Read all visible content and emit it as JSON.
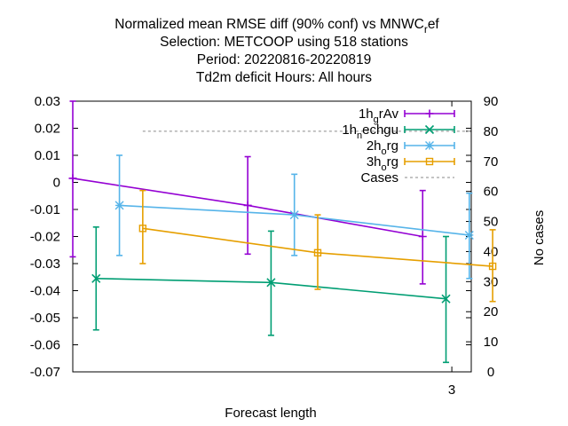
{
  "chart_data": {
    "type": "line",
    "title_lines": [
      "Normalized mean RMSE diff (90% conf) vs MNWC",
      "Selection: METCOOP using   518 stations",
      "Period: 20220816-20220819",
      "Td2m deficit   Hours:  All hours"
    ],
    "title_sub": "r",
    "title_tail": "ef",
    "xlabel": "Forecast length",
    "ylabel_right": "No cases",
    "x_ticks": [
      "3"
    ],
    "xlim": [
      1.05,
      3.1
    ],
    "ylim": [
      -0.07,
      0.03
    ],
    "y_ticks": [
      "0.03",
      "0.02",
      "0.01",
      "0",
      "-0.01",
      "-0.02",
      "-0.03",
      "-0.04",
      "-0.05",
      "-0.06",
      "-0.07"
    ],
    "y2lim": [
      0,
      90
    ],
    "y2_ticks": [
      "90",
      "80",
      "70",
      "60",
      "50",
      "40",
      "30",
      "20",
      "10",
      "0"
    ],
    "series": [
      {
        "name": "1h_gRAv",
        "legend": {
          "a": "1h",
          "sub": "g",
          "b": "rAv"
        },
        "color": "#9400d3",
        "marker": "plus",
        "points": [
          {
            "x": 1.05,
            "y": 0.0015,
            "lo": -0.0275,
            "hi": 0.03
          },
          {
            "x": 1.95,
            "y": -0.0085,
            "lo": -0.0265,
            "hi": 0.0095
          },
          {
            "x": 2.85,
            "y": -0.02,
            "lo": -0.0375,
            "hi": -0.003
          }
        ]
      },
      {
        "name": "1h_nechgu",
        "legend": {
          "a": "1h",
          "sub": "n",
          "b": "echgu"
        },
        "color": "#009e73",
        "marker": "x",
        "points": [
          {
            "x": 1.17,
            "y": -0.0355,
            "lo": -0.0545,
            "hi": -0.0165
          },
          {
            "x": 2.07,
            "y": -0.037,
            "lo": -0.0565,
            "hi": -0.018
          },
          {
            "x": 2.97,
            "y": -0.043,
            "lo": -0.0665,
            "hi": -0.02
          }
        ]
      },
      {
        "name": "2h_org",
        "legend": {
          "a": "2h",
          "sub": "o",
          "b": "rg"
        },
        "color": "#56b4e9",
        "marker": "star",
        "points": [
          {
            "x": 1.29,
            "y": -0.0085,
            "lo": -0.027,
            "hi": 0.01
          },
          {
            "x": 2.19,
            "y": -0.012,
            "lo": -0.027,
            "hi": 0.003
          },
          {
            "x": 3.09,
            "y": -0.0195,
            "lo": -0.0355,
            "hi": -0.004
          }
        ]
      },
      {
        "name": "3h_org",
        "legend": {
          "a": "3h",
          "sub": "o",
          "b": "rg"
        },
        "color": "#e69f00",
        "marker": "square",
        "points": [
          {
            "x": 1.41,
            "y": -0.017,
            "lo": -0.03,
            "hi": -0.003
          },
          {
            "x": 2.31,
            "y": -0.026,
            "lo": -0.0395,
            "hi": -0.012
          },
          {
            "x": 3.21,
            "y": -0.031,
            "lo": -0.044,
            "hi": -0.0175
          }
        ]
      }
    ],
    "cases": {
      "name": "Cases",
      "color": "#a0a0a0",
      "values": [
        {
          "x": 1.41,
          "y2": 80
        },
        {
          "x": 3.1,
          "y2": 80
        }
      ]
    },
    "legend_position": "top-right",
    "grid": false
  }
}
